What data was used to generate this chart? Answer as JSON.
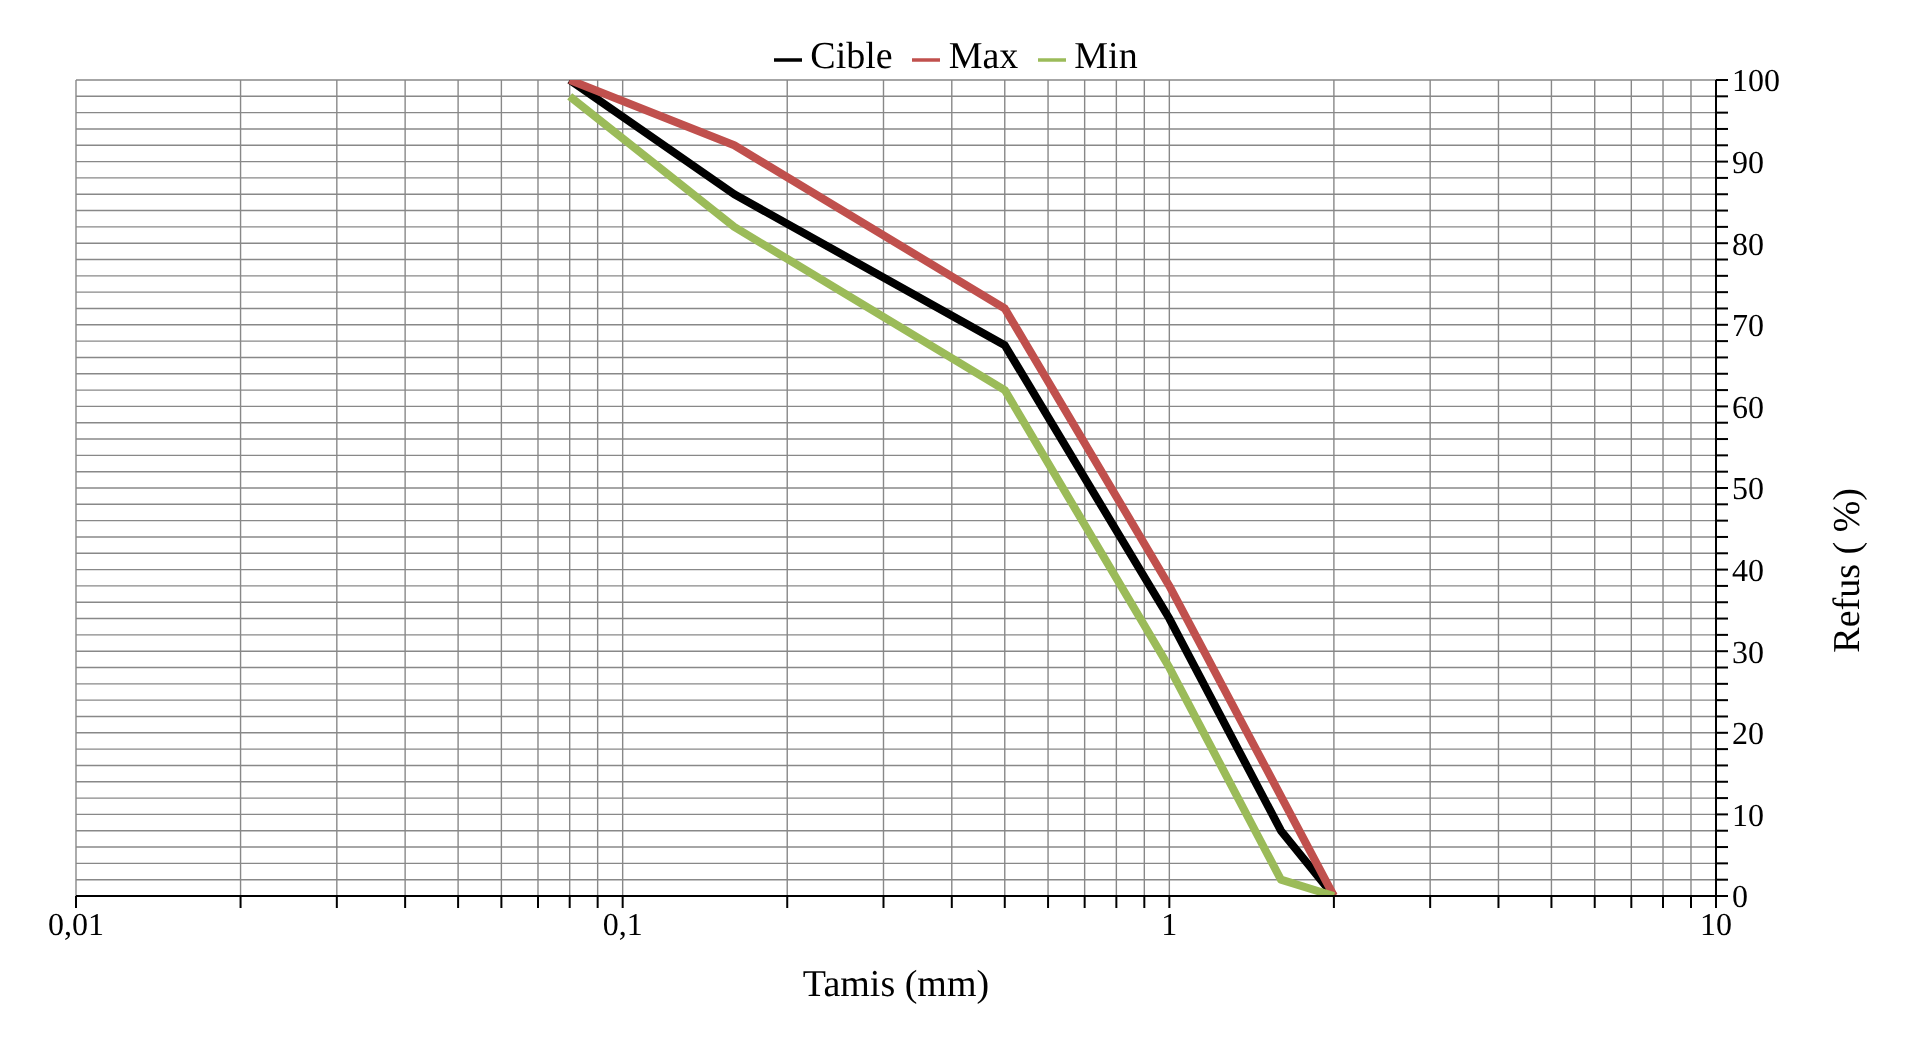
{
  "chart_data": {
    "type": "line",
    "xlabel": "Tamis (mm)",
    "ylabel": "Refus ( %)",
    "log": "x",
    "grid": true,
    "legend": "top",
    "marker": "none",
    "line_style": "solid",
    "xlim": [
      0.01,
      10
    ],
    "ylim": [
      0,
      100
    ],
    "xticks": [
      {
        "value": 0.01,
        "label": "0,01"
      },
      {
        "value": 0.02,
        "label": null
      },
      {
        "value": 0.03,
        "label": null
      },
      {
        "value": 0.04,
        "label": null
      },
      {
        "value": 0.05,
        "label": null
      },
      {
        "value": 0.06,
        "label": null
      },
      {
        "value": 0.07,
        "label": null
      },
      {
        "value": 0.08,
        "label": null
      },
      {
        "value": 0.09,
        "label": null
      },
      {
        "value": 0.1,
        "label": "0,1"
      },
      {
        "value": 0.2,
        "label": null
      },
      {
        "value": 0.3,
        "label": null
      },
      {
        "value": 0.4,
        "label": null
      },
      {
        "value": 0.5,
        "label": null
      },
      {
        "value": 0.6,
        "label": null
      },
      {
        "value": 0.7,
        "label": null
      },
      {
        "value": 0.8,
        "label": null
      },
      {
        "value": 0.9,
        "label": null
      },
      1,
      {
        "value": 2,
        "label": null
      },
      {
        "value": 3,
        "label": null
      },
      {
        "value": 4,
        "label": null
      },
      {
        "value": 5,
        "label": null
      },
      {
        "value": 6,
        "label": null
      },
      {
        "value": 7,
        "label": null
      },
      {
        "value": 8,
        "label": null
      },
      {
        "value": 9,
        "label": null
      },
      10
    ],
    "yticks": [
      0,
      {
        "value": 2,
        "label": null
      },
      {
        "value": 4,
        "label": null
      },
      {
        "value": 6,
        "label": null
      },
      {
        "value": 8,
        "label": null
      },
      10,
      {
        "value": 12,
        "label": null
      },
      {
        "value": 14,
        "label": null
      },
      {
        "value": 16,
        "label": null
      },
      {
        "value": 18,
        "label": null
      },
      20,
      {
        "value": 22,
        "label": null
      },
      {
        "value": 24,
        "label": null
      },
      {
        "value": 26,
        "label": null
      },
      {
        "value": 28,
        "label": null
      },
      30,
      {
        "value": 32,
        "label": null
      },
      {
        "value": 34,
        "label": null
      },
      {
        "value": 36,
        "label": null
      },
      {
        "value": 38,
        "label": null
      },
      40,
      {
        "value": 42,
        "label": null
      },
      {
        "value": 44,
        "label": null
      },
      {
        "value": 46,
        "label": null
      },
      {
        "value": 48,
        "label": null
      },
      50,
      {
        "value": 52,
        "label": null
      },
      {
        "value": 54,
        "label": null
      },
      {
        "value": 56,
        "label": null
      },
      {
        "value": 58,
        "label": null
      },
      60,
      {
        "value": 62,
        "label": null
      },
      {
        "value": 64,
        "label": null
      },
      {
        "value": 66,
        "label": null
      },
      {
        "value": 68,
        "label": null
      },
      70,
      {
        "value": 72,
        "label": null
      },
      {
        "value": 74,
        "label": null
      },
      {
        "value": 76,
        "label": null
      },
      {
        "value": 78,
        "label": null
      },
      80,
      {
        "value": 82,
        "label": null
      },
      {
        "value": 84,
        "label": null
      },
      {
        "value": 86,
        "label": null
      },
      {
        "value": 88,
        "label": null
      },
      90,
      {
        "value": 92,
        "label": null
      },
      {
        "value": 94,
        "label": null
      },
      {
        "value": 96,
        "label": null
      },
      {
        "value": 98,
        "label": null
      },
      100
    ],
    "series": [
      {
        "name": "Cible",
        "color": "#000000",
        "x": [
          0.08,
          0.16,
          0.5,
          1,
          1.6,
          2
        ],
        "values": [
          100,
          86,
          67.5,
          34,
          8,
          0
        ]
      },
      {
        "name": "Max",
        "color": "#c0504d",
        "x": [
          0.08,
          0.16,
          0.5,
          1,
          2
        ],
        "values": [
          100,
          92,
          72,
          38,
          0
        ]
      },
      {
        "name": "Min",
        "color": "#9bbb59",
        "x": [
          0.08,
          0.16,
          0.5,
          1,
          1.6,
          2
        ],
        "values": [
          98,
          82,
          62,
          28,
          2,
          0
        ]
      }
    ]
  }
}
